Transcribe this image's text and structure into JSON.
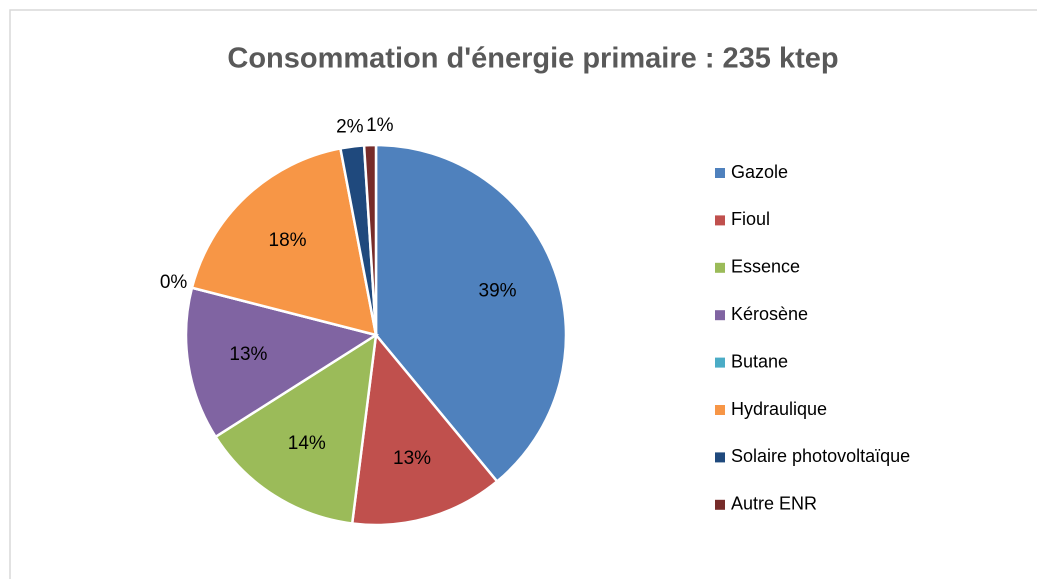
{
  "chart_data": {
    "type": "pie",
    "title": "Consommation d'énergie primaire : 235 ktep",
    "categories": [
      "Gazole",
      "Fioul",
      "Essence",
      "Kérosène",
      "Butane",
      "Hydraulique",
      "Solaire photovoltaïque",
      "Autre ENR"
    ],
    "values": [
      39,
      13,
      14,
      13,
      0,
      18,
      2,
      1
    ],
    "value_labels": [
      "39%",
      "13%",
      "14%",
      "13%",
      "0%",
      "18%",
      "2%",
      "1%"
    ],
    "colors": [
      "#4f81bd",
      "#c0504d",
      "#9bbb59",
      "#8064a2",
      "#4bacc6",
      "#f79646",
      "#1f497d",
      "#772c2a"
    ],
    "legend": "right"
  }
}
